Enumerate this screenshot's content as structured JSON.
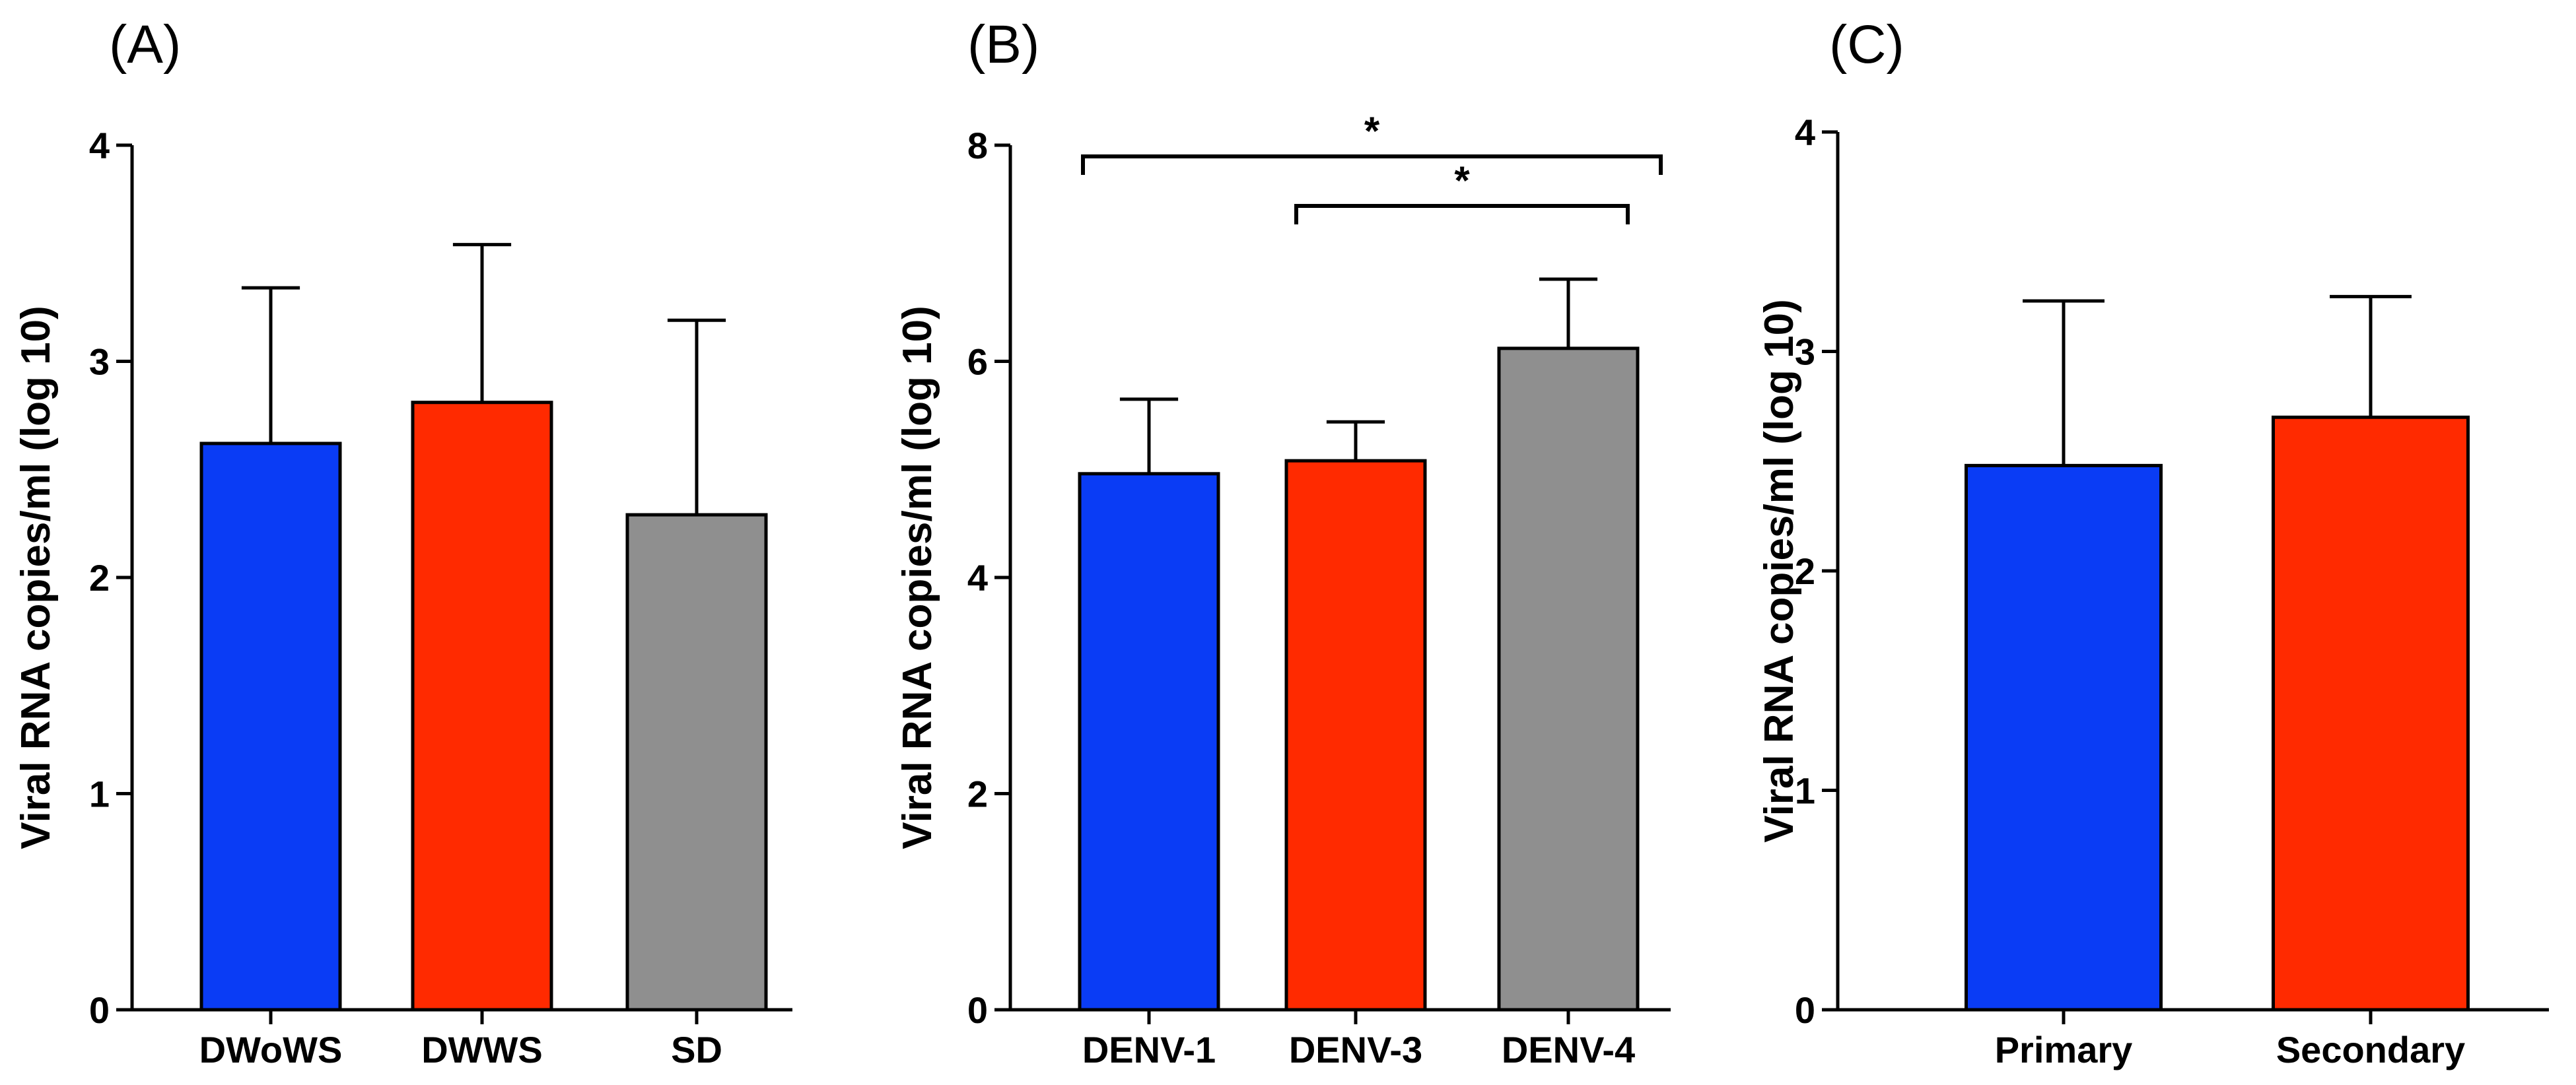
{
  "chart_data": [
    {
      "type": "bar",
      "panel": "(A)",
      "ylabel": "Viral RNA copies/ml (log 10)",
      "ylim": [
        0,
        4
      ],
      "yticks": [
        0,
        1,
        2,
        3,
        4
      ],
      "categories": [
        "DWoWS",
        "DWWS",
        "SD"
      ],
      "values": [
        2.62,
        2.81,
        2.29
      ],
      "errors": [
        0.72,
        0.73,
        0.9
      ],
      "colors": [
        "#0a3cf5",
        "#ff2a00",
        "#8f8f8f"
      ],
      "significance": []
    },
    {
      "type": "bar",
      "panel": "(B)",
      "ylabel": "Viral RNA copies/ml (log 10)",
      "ylim": [
        0,
        8
      ],
      "yticks": [
        0,
        2,
        4,
        6,
        8
      ],
      "categories": [
        "DENV-1",
        "DENV-3",
        "DENV-4"
      ],
      "values": [
        4.96,
        5.08,
        6.12
      ],
      "errors": [
        0.69,
        0.36,
        0.64
      ],
      "colors": [
        "#0a3cf5",
        "#ff2a00",
        "#8f8f8f"
      ],
      "significance": [
        {
          "from": 0,
          "to": 2,
          "label": "*"
        },
        {
          "from": 1,
          "to": 2,
          "label": "*"
        }
      ]
    },
    {
      "type": "bar",
      "panel": "(C)",
      "ylabel": "Viral RNA copies/ml (log 10)",
      "ylim": [
        0,
        4
      ],
      "yticks": [
        0,
        1,
        2,
        3,
        4
      ],
      "categories": [
        "Primary",
        "Secondary"
      ],
      "values": [
        2.48,
        2.7
      ],
      "errors": [
        0.75,
        0.55
      ],
      "colors": [
        "#0a3cf5",
        "#ff2a00"
      ],
      "significance": []
    }
  ]
}
